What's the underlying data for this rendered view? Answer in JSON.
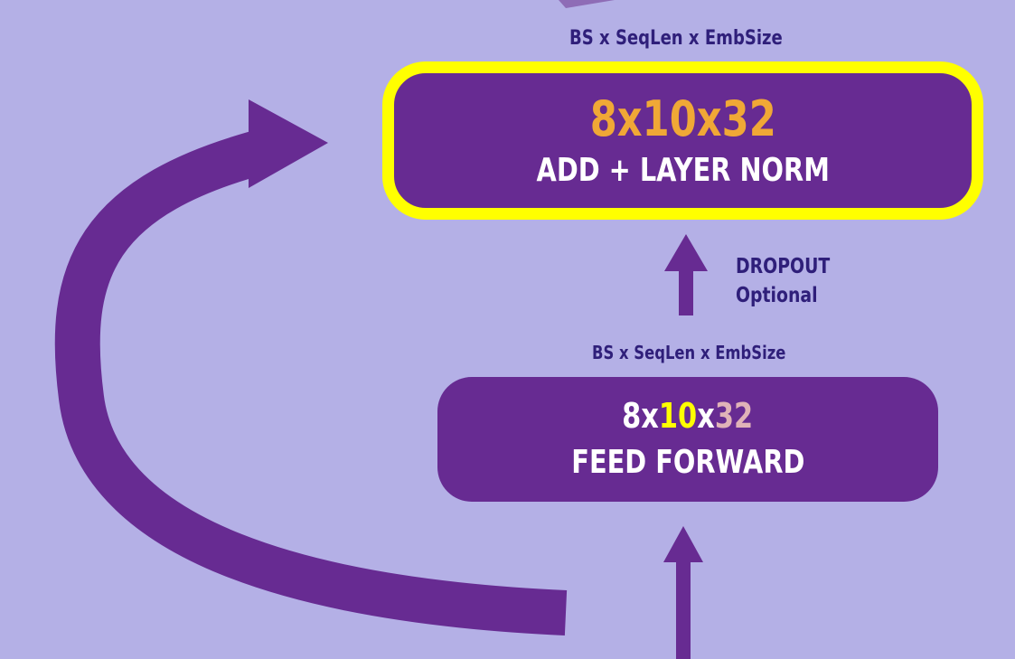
{
  "top_block": {
    "shape_label": "BS x SeqLen x EmbSize",
    "dims": "8x10x32",
    "title": "ADD + LAYER NORM"
  },
  "dropout": {
    "label": "DROPOUT",
    "note": "Optional"
  },
  "bottom_block": {
    "shape_label": "BS x SeqLen x EmbSize",
    "dims_parts": [
      "8",
      "x",
      "10",
      "x",
      "32"
    ],
    "title": "FEED FORWARD"
  },
  "colors": {
    "background": "#b4b0e6",
    "block_fill": "#672b92",
    "highlight_border": "#ffff00",
    "top_dims": "#f0a836",
    "dim_seq": "#ffff00",
    "dim_emb": "#e0b3b8",
    "arrow": "#672b92",
    "label_text": "#2f1f7a"
  }
}
